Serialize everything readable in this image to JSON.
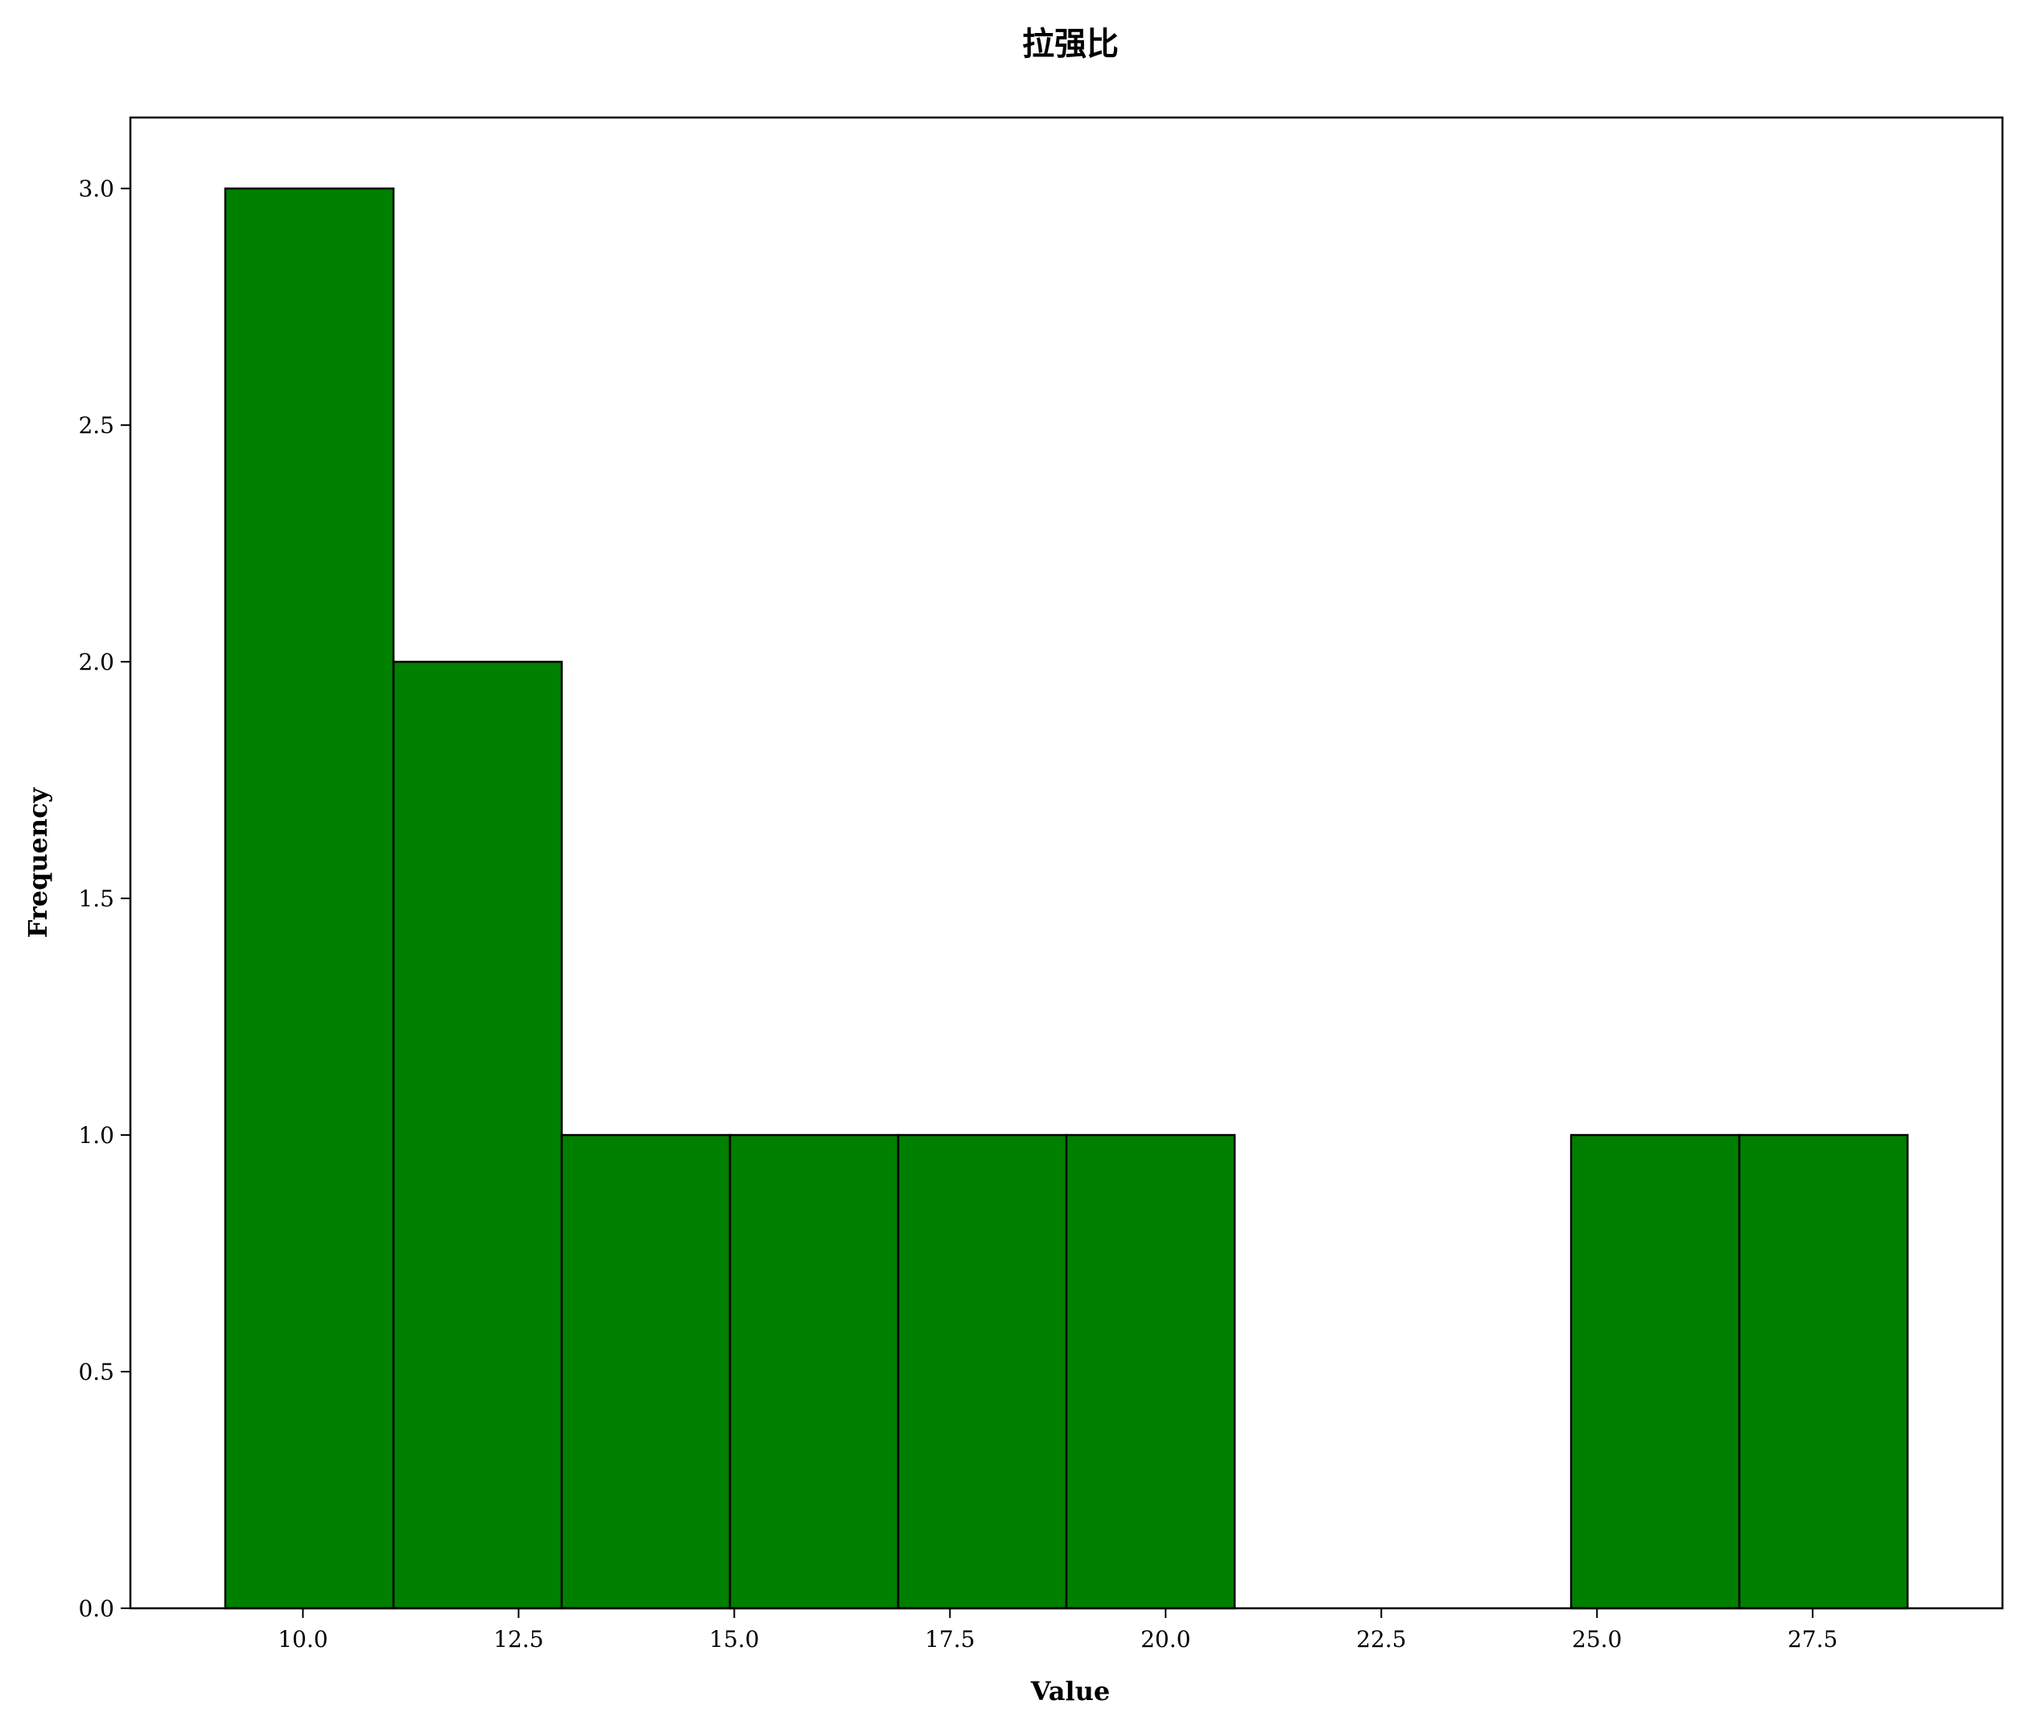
{
  "chart_data": {
    "type": "bar",
    "title": "拉强比",
    "xlabel": "Value",
    "ylabel": "Frequency",
    "bin_edges": [
      9.1,
      11.05,
      13.0,
      14.95,
      16.9,
      18.85,
      20.8,
      22.75,
      24.7,
      26.65,
      28.6
    ],
    "values": [
      3,
      2,
      1,
      1,
      1,
      1,
      0,
      0,
      1,
      1
    ],
    "xlim": [
      8.0,
      29.7
    ],
    "ylim": [
      0,
      3.15
    ],
    "xticks": [
      10.0,
      12.5,
      15.0,
      17.5,
      20.0,
      22.5,
      25.0,
      27.5
    ],
    "xtick_labels": [
      "10.0",
      "12.5",
      "15.0",
      "17.5",
      "20.0",
      "22.5",
      "25.0",
      "27.5"
    ],
    "yticks": [
      0.0,
      0.5,
      1.0,
      1.5,
      2.0,
      2.5,
      3.0
    ],
    "ytick_labels": [
      "0.0",
      "0.5",
      "1.0",
      "1.5",
      "2.0",
      "2.5",
      "3.0"
    ],
    "grid": false,
    "colors": {
      "bar_fill": "#008000",
      "bar_edge": "#000000",
      "axes": "#000000"
    }
  }
}
